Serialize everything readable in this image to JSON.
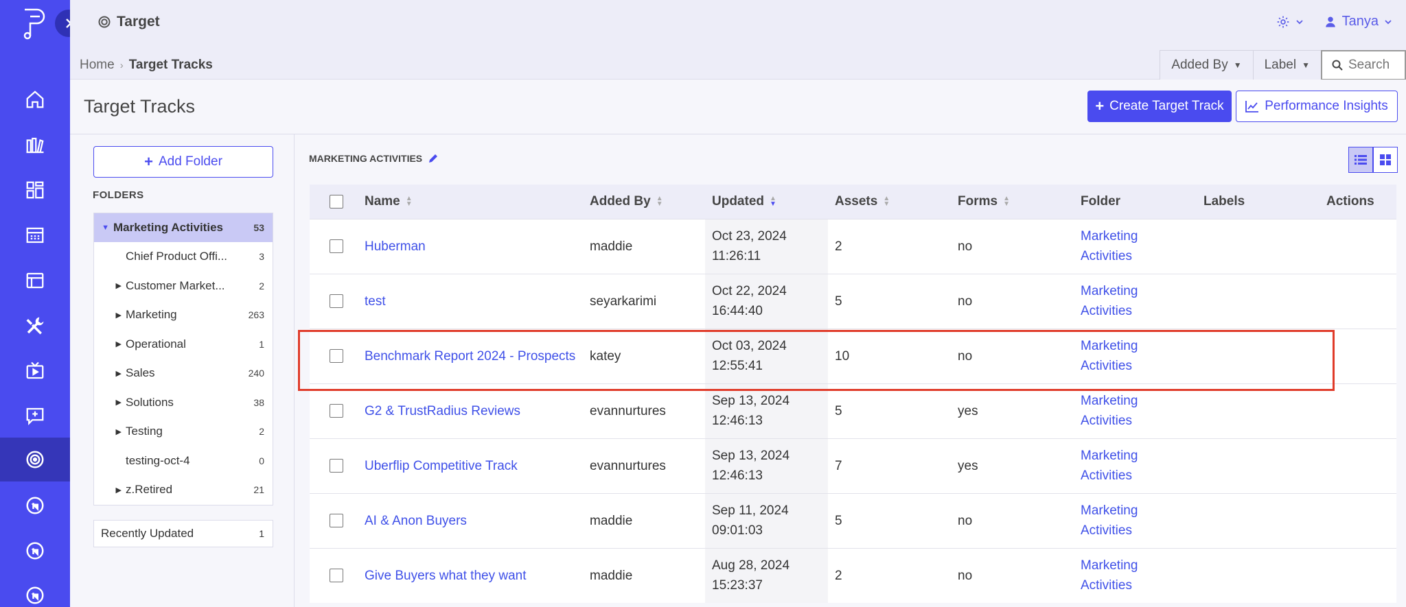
{
  "app": {
    "title": "Target",
    "user": "Tanya"
  },
  "breadcrumb": {
    "home": "Home",
    "current": "Target Tracks"
  },
  "filters": {
    "added_by": "Added By",
    "label": "Label",
    "search_placeholder": "Search"
  },
  "page": {
    "title": "Target Tracks",
    "create_button": "Create Target Track",
    "insights_button": "Performance Insights"
  },
  "folders": {
    "add_button": "Add Folder",
    "label": "FOLDERS",
    "root": {
      "name": "Marketing Activities",
      "count": "53"
    },
    "items": [
      {
        "name": "Chief Product Offi...",
        "count": "3",
        "caret": false
      },
      {
        "name": "Customer Market...",
        "count": "2",
        "caret": true
      },
      {
        "name": "Marketing",
        "count": "263",
        "caret": true
      },
      {
        "name": "Operational",
        "count": "1",
        "caret": true
      },
      {
        "name": "Sales",
        "count": "240",
        "caret": true
      },
      {
        "name": "Solutions",
        "count": "38",
        "caret": true
      },
      {
        "name": "Testing",
        "count": "2",
        "caret": true
      },
      {
        "name": "testing-oct-4",
        "count": "0",
        "caret": false
      },
      {
        "name": "z.Retired",
        "count": "21",
        "caret": true
      }
    ],
    "recent": {
      "name": "Recently Updated",
      "count": "1"
    }
  },
  "main": {
    "section_title": "MARKETING ACTIVITIES",
    "columns": {
      "name": "Name",
      "added_by": "Added By",
      "updated": "Updated",
      "assets": "Assets",
      "forms": "Forms",
      "folder": "Folder",
      "labels": "Labels",
      "actions": "Actions"
    },
    "rows": [
      {
        "name": "Huberman",
        "added_by": "maddie",
        "date": "Oct 23, 2024",
        "time": "11:26:11",
        "assets": "2",
        "forms": "no",
        "folder1": "Marketing",
        "folder2": "Activities"
      },
      {
        "name": "test",
        "added_by": "seyarkarimi",
        "date": "Oct 22, 2024",
        "time": "16:44:40",
        "assets": "5",
        "forms": "no",
        "folder1": "Marketing",
        "folder2": "Activities"
      },
      {
        "name": "Benchmark Report 2024 - Prospects",
        "added_by": "katey",
        "date": "Oct 03, 2024",
        "time": "12:55:41",
        "assets": "10",
        "forms": "no",
        "folder1": "Marketing",
        "folder2": "Activities"
      },
      {
        "name": "G2 & TrustRadius Reviews",
        "added_by": "evannurtures",
        "date": "Sep 13, 2024",
        "time": "12:46:13",
        "assets": "5",
        "forms": "yes",
        "folder1": "Marketing",
        "folder2": "Activities"
      },
      {
        "name": "Uberflip Competitive Track",
        "added_by": "evannurtures",
        "date": "Sep 13, 2024",
        "time": "12:46:13",
        "assets": "7",
        "forms": "yes",
        "folder1": "Marketing",
        "folder2": "Activities"
      },
      {
        "name": "AI & Anon Buyers",
        "added_by": "maddie",
        "date": "Sep 11, 2024",
        "time": "09:01:03",
        "assets": "5",
        "forms": "no",
        "folder1": "Marketing",
        "folder2": "Activities"
      },
      {
        "name": "Give Buyers what they want",
        "added_by": "maddie",
        "date": "Aug 28, 2024",
        "time": "15:23:37",
        "assets": "2",
        "forms": "no",
        "folder1": "Marketing",
        "folder2": "Activities"
      }
    ]
  },
  "colors": {
    "brand": "#4a4bef",
    "rail_active": "#3536b8",
    "highlight": "#e03b2a",
    "link": "#3f50e8"
  }
}
